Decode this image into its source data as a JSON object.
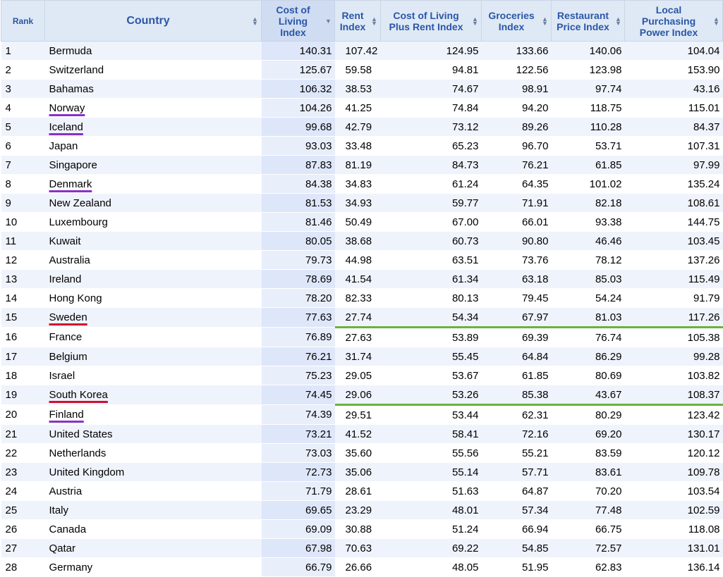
{
  "columns": [
    {
      "label": "Rank"
    },
    {
      "label": "Country"
    },
    {
      "label": "Cost of Living Index"
    },
    {
      "label": "Rent Index"
    },
    {
      "label": "Cost of Living Plus Rent Index"
    },
    {
      "label": "Groceries Index"
    },
    {
      "label": "Restaurant Price Index"
    },
    {
      "label": "Local Purchasing Power Index"
    }
  ],
  "sorted_column": "Cost of Living Index",
  "colors": {
    "header_bg": "#dfe9f6",
    "header_text": "#2a57a5",
    "purple_underline": "#8b2fc9",
    "red_underline": "#d10f33",
    "green_line": "#6ab33e"
  },
  "rows": [
    {
      "rank": "1",
      "country": "Bermuda",
      "values": [
        "140.31",
        "107.42",
        "124.95",
        "133.66",
        "140.06",
        "104.04"
      ]
    },
    {
      "rank": "2",
      "country": "Switzerland",
      "values": [
        "125.67",
        "59.58",
        "94.81",
        "122.56",
        "123.98",
        "153.90"
      ]
    },
    {
      "rank": "3",
      "country": "Bahamas",
      "values": [
        "106.32",
        "38.53",
        "74.67",
        "98.91",
        "97.74",
        "43.16"
      ]
    },
    {
      "rank": "4",
      "country": "Norway",
      "underline": "purple",
      "values": [
        "104.26",
        "41.25",
        "74.84",
        "94.20",
        "118.75",
        "115.01"
      ]
    },
    {
      "rank": "5",
      "country": "Iceland",
      "underline": "purple",
      "values": [
        "99.68",
        "42.79",
        "73.12",
        "89.26",
        "110.28",
        "84.37"
      ]
    },
    {
      "rank": "6",
      "country": "Japan",
      "values": [
        "93.03",
        "33.48",
        "65.23",
        "96.70",
        "53.71",
        "107.31"
      ]
    },
    {
      "rank": "7",
      "country": "Singapore",
      "values": [
        "87.83",
        "81.19",
        "84.73",
        "76.21",
        "61.85",
        "97.99"
      ]
    },
    {
      "rank": "8",
      "country": "Denmark",
      "underline": "purple",
      "values": [
        "84.38",
        "34.83",
        "61.24",
        "64.35",
        "101.02",
        "135.24"
      ]
    },
    {
      "rank": "9",
      "country": "New Zealand",
      "values": [
        "81.53",
        "34.93",
        "59.77",
        "71.91",
        "82.18",
        "108.61"
      ]
    },
    {
      "rank": "10",
      "country": "Luxembourg",
      "values": [
        "81.46",
        "50.49",
        "67.00",
        "66.01",
        "93.38",
        "144.75"
      ]
    },
    {
      "rank": "11",
      "country": "Kuwait",
      "values": [
        "80.05",
        "38.68",
        "60.73",
        "90.80",
        "46.46",
        "103.45"
      ]
    },
    {
      "rank": "12",
      "country": "Australia",
      "values": [
        "79.73",
        "44.98",
        "63.51",
        "73.76",
        "78.12",
        "137.26"
      ]
    },
    {
      "rank": "13",
      "country": "Ireland",
      "values": [
        "78.69",
        "41.54",
        "61.34",
        "63.18",
        "85.03",
        "115.49"
      ]
    },
    {
      "rank": "14",
      "country": "Hong Kong",
      "values": [
        "78.20",
        "82.33",
        "80.13",
        "79.45",
        "54.24",
        "91.79"
      ]
    },
    {
      "rank": "15",
      "country": "Sweden",
      "underline": "red",
      "green_line": true,
      "values": [
        "77.63",
        "27.74",
        "54.34",
        "67.97",
        "81.03",
        "117.26"
      ]
    },
    {
      "rank": "16",
      "country": "France",
      "values": [
        "76.89",
        "27.63",
        "53.89",
        "69.39",
        "76.74",
        "105.38"
      ]
    },
    {
      "rank": "17",
      "country": "Belgium",
      "values": [
        "76.21",
        "31.74",
        "55.45",
        "64.84",
        "86.29",
        "99.28"
      ]
    },
    {
      "rank": "18",
      "country": "Israel",
      "values": [
        "75.23",
        "29.05",
        "53.67",
        "61.85",
        "80.69",
        "103.82"
      ]
    },
    {
      "rank": "19",
      "country": "South Korea",
      "underline": "red",
      "green_line": true,
      "values": [
        "74.45",
        "29.06",
        "53.26",
        "85.38",
        "43.67",
        "108.37"
      ]
    },
    {
      "rank": "20",
      "country": "Finland",
      "underline": "purple",
      "values": [
        "74.39",
        "29.51",
        "53.44",
        "62.31",
        "80.29",
        "123.42"
      ]
    },
    {
      "rank": "21",
      "country": "United States",
      "values": [
        "73.21",
        "41.52",
        "58.41",
        "72.16",
        "69.20",
        "130.17"
      ]
    },
    {
      "rank": "22",
      "country": "Netherlands",
      "values": [
        "73.03",
        "35.60",
        "55.56",
        "55.21",
        "83.59",
        "120.12"
      ]
    },
    {
      "rank": "23",
      "country": "United Kingdom",
      "values": [
        "72.73",
        "35.06",
        "55.14",
        "57.71",
        "83.61",
        "109.78"
      ]
    },
    {
      "rank": "24",
      "country": "Austria",
      "values": [
        "71.79",
        "28.61",
        "51.63",
        "64.87",
        "70.20",
        "103.54"
      ]
    },
    {
      "rank": "25",
      "country": "Italy",
      "values": [
        "69.65",
        "23.29",
        "48.01",
        "57.34",
        "77.48",
        "102.59"
      ]
    },
    {
      "rank": "26",
      "country": "Canada",
      "values": [
        "69.09",
        "30.88",
        "51.24",
        "66.94",
        "66.75",
        "118.08"
      ]
    },
    {
      "rank": "27",
      "country": "Qatar",
      "values": [
        "67.98",
        "70.63",
        "69.22",
        "54.85",
        "72.57",
        "131.01"
      ]
    },
    {
      "rank": "28",
      "country": "Germany",
      "values": [
        "66.79",
        "26.66",
        "48.05",
        "51.95",
        "62.83",
        "136.14"
      ]
    }
  ]
}
